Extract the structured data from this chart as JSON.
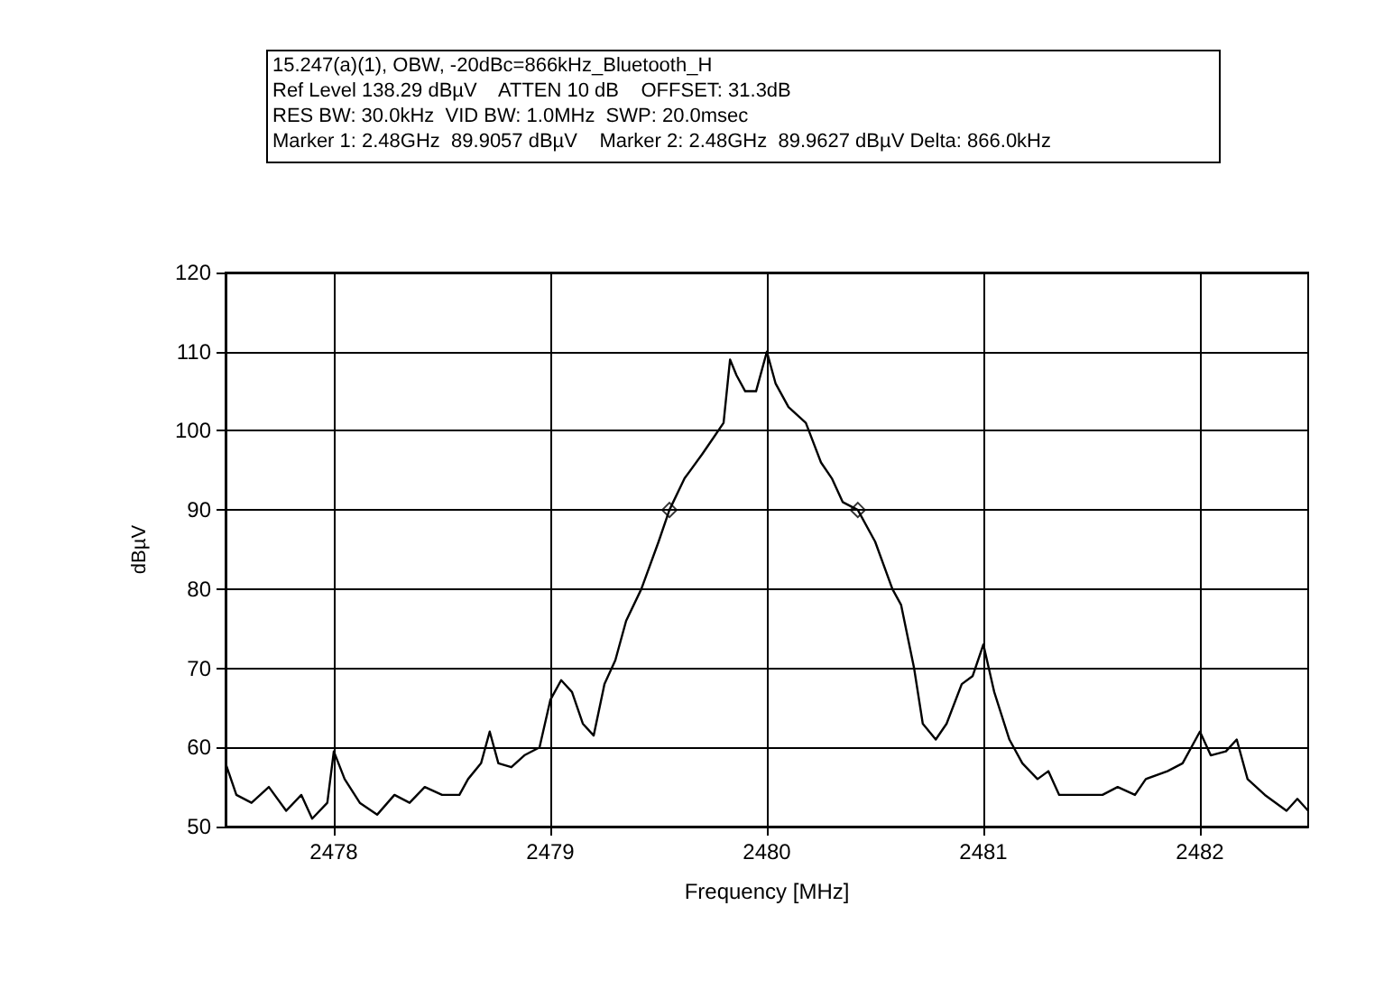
{
  "chart_data": {
    "type": "line",
    "title": "15.247(a)(1), OBW, -20dBc=866kHz_Bluetooth_H",
    "annotations": [
      "Ref Level 138.29 dBµV    ATTEN 10 dB    OFFSET: 31.3dB",
      "RES BW: 30.0kHz  VID BW: 1.0MHz  SWP: 20.0msec",
      "Marker 1: 2.48GHz  89.9057 dBµV    Marker 2: 2.48GHz  89.9627 dBµV Delta: 866.0kHz"
    ],
    "xlabel": "Frequency [MHz]",
    "ylabel": "dBµV",
    "xlim": [
      2477.5,
      2482.5
    ],
    "xticks": [
      2478,
      2479,
      2480,
      2481,
      2482
    ],
    "ylim": [
      50,
      120
    ],
    "yticks": [
      50,
      60,
      70,
      80,
      90,
      100,
      110,
      120
    ],
    "grid": true,
    "line_style": "solid",
    "marker": "none",
    "series": [
      {
        "color": "#000000",
        "x": [
          2477.5,
          2477.55,
          2477.62,
          2477.7,
          2477.78,
          2477.85,
          2477.9,
          2477.97,
          2478.0,
          2478.05,
          2478.12,
          2478.2,
          2478.28,
          2478.35,
          2478.42,
          2478.5,
          2478.58,
          2478.62,
          2478.68,
          2478.72,
          2478.76,
          2478.82,
          2478.88,
          2478.95,
          2479.0,
          2479.05,
          2479.1,
          2479.15,
          2479.2,
          2479.25,
          2479.3,
          2479.35,
          2479.42,
          2479.5,
          2479.55,
          2479.62,
          2479.7,
          2479.75,
          2479.8,
          2479.83,
          2479.86,
          2479.9,
          2479.95,
          2480.0,
          2480.04,
          2480.1,
          2480.18,
          2480.25,
          2480.3,
          2480.35,
          2480.42,
          2480.5,
          2480.58,
          2480.62,
          2480.68,
          2480.72,
          2480.78,
          2480.83,
          2480.9,
          2480.95,
          2481.0,
          2481.05,
          2481.12,
          2481.18,
          2481.25,
          2481.3,
          2481.35,
          2481.45,
          2481.55,
          2481.62,
          2481.7,
          2481.75,
          2481.85,
          2481.92,
          2482.0,
          2482.05,
          2482.12,
          2482.17,
          2482.22,
          2482.3,
          2482.4,
          2482.45,
          2482.5
        ],
        "values": [
          58,
          54,
          53,
          55,
          52,
          54,
          51,
          53,
          59.5,
          56,
          53,
          51.5,
          54,
          53,
          55,
          54,
          54,
          56,
          58,
          62,
          58,
          57.5,
          59,
          60,
          66,
          68.5,
          67,
          63,
          61.5,
          68,
          71,
          76,
          80,
          86,
          90,
          94,
          97,
          99,
          101,
          109,
          107,
          105,
          105,
          110,
          106,
          103,
          101,
          96,
          94,
          91,
          90,
          86,
          80,
          78,
          70,
          63,
          61,
          63,
          68,
          69,
          73,
          67,
          61,
          58,
          56,
          57,
          54,
          54,
          54,
          55,
          54,
          56,
          57,
          58,
          62,
          59,
          59.5,
          61,
          56,
          54,
          52,
          53.5,
          52
        ]
      },
      {
        "type": "scatter",
        "marker": "diamond",
        "color": "#000000",
        "x": [
          2479.55,
          2480.42
        ],
        "values": [
          90,
          90
        ]
      }
    ]
  }
}
